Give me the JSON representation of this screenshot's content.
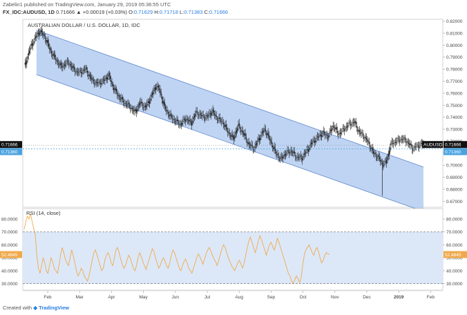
{
  "header": {
    "author": "Zabelin1",
    "published_text": "published on TradingView.com, January 29, 2019 05:36:55 UTC",
    "symbol": "FX_IDC:AUDUSD, 1D",
    "change": "0.71666 ▲ +0.00019 (+0.03%)",
    "o_label": "O:",
    "o_val": "0.71629",
    "h_label": "H:",
    "h_val": "0.71718",
    "l_label": "L:",
    "l_val": "0.71383",
    "c_label": "C:",
    "c_val": "0.71666"
  },
  "footer": {
    "created_with": "Created with",
    "brand": "TradingView"
  },
  "colors": {
    "candle": "#1a1a1a",
    "channel_fill": "#a9c6ef",
    "channel_line": "#5b86c9",
    "rsi_line": "#f0a94a",
    "rsi_band": "#dce8f8",
    "price_tag": "#111111",
    "support_tag": "#4aa3df",
    "rsi_tag": "#f0a94a"
  },
  "chart_data": [
    {
      "type": "candlestick",
      "title": "AUSTRALIAN DOLLAR / U.S. DOLLAR, 1D, IDC",
      "ylim": [
        0.665,
        0.8215
      ],
      "y_ticks": [
        "0.82000",
        "0.81000",
        "0.80000",
        "0.79000",
        "0.78000",
        "0.77000",
        "0.76000",
        "0.75000",
        "0.74000",
        "0.73000",
        "0.72000",
        "0.71000",
        "0.70000",
        "0.69000",
        "0.68000",
        "0.67000"
      ],
      "x_months": [
        "Feb",
        "Mar",
        "Apr",
        "May",
        "Jun",
        "Jul",
        "Aug",
        "Sep",
        "Oct",
        "Nov",
        "Dec",
        "2019",
        "Feb"
      ],
      "close_path": [
        [
          0,
          0.782
        ],
        [
          8,
          0.8
        ],
        [
          14,
          0.808
        ],
        [
          18,
          0.812
        ],
        [
          24,
          0.806
        ],
        [
          30,
          0.795
        ],
        [
          36,
          0.788
        ],
        [
          42,
          0.782
        ],
        [
          50,
          0.786
        ],
        [
          56,
          0.78
        ],
        [
          62,
          0.777
        ],
        [
          70,
          0.78
        ],
        [
          76,
          0.772
        ],
        [
          82,
          0.768
        ],
        [
          90,
          0.77
        ],
        [
          96,
          0.775
        ],
        [
          102,
          0.764
        ],
        [
          108,
          0.757
        ],
        [
          114,
          0.752
        ],
        [
          120,
          0.749
        ],
        [
          126,
          0.744
        ],
        [
          132,
          0.752
        ],
        [
          138,
          0.748
        ],
        [
          144,
          0.756
        ],
        [
          150,
          0.766
        ],
        [
          154,
          0.763
        ],
        [
          160,
          0.748
        ],
        [
          166,
          0.741
        ],
        [
          172,
          0.737
        ],
        [
          178,
          0.734
        ],
        [
          184,
          0.739
        ],
        [
          190,
          0.735
        ],
        [
          196,
          0.744
        ],
        [
          202,
          0.741
        ],
        [
          208,
          0.74
        ],
        [
          214,
          0.745
        ],
        [
          220,
          0.739
        ],
        [
          226,
          0.736
        ],
        [
          232,
          0.728
        ],
        [
          238,
          0.722
        ],
        [
          244,
          0.733
        ],
        [
          250,
          0.726
        ],
        [
          256,
          0.717
        ],
        [
          262,
          0.714
        ],
        [
          268,
          0.723
        ],
        [
          274,
          0.73
        ],
        [
          280,
          0.721
        ],
        [
          286,
          0.711
        ],
        [
          292,
          0.705
        ],
        [
          298,
          0.71
        ],
        [
          304,
          0.712
        ],
        [
          310,
          0.707
        ],
        [
          316,
          0.706
        ],
        [
          322,
          0.712
        ],
        [
          328,
          0.719
        ],
        [
          334,
          0.723
        ],
        [
          340,
          0.727
        ],
        [
          346,
          0.724
        ],
        [
          352,
          0.733
        ],
        [
          358,
          0.726
        ],
        [
          364,
          0.73
        ],
        [
          370,
          0.734
        ],
        [
          376,
          0.736
        ],
        [
          382,
          0.727
        ],
        [
          386,
          0.725
        ],
        [
          392,
          0.719
        ],
        [
          398,
          0.71
        ],
        [
          404,
          0.706
        ],
        [
          408,
          0.701
        ],
        [
          412,
          0.702
        ],
        [
          414,
          0.707
        ],
        [
          418,
          0.718
        ],
        [
          424,
          0.72
        ],
        [
          430,
          0.722
        ],
        [
          436,
          0.72
        ],
        [
          442,
          0.714
        ],
        [
          448,
          0.716
        ],
        [
          452,
          0.718
        ],
        [
          455,
          0.7167
        ]
      ],
      "candles": [
        [
          0,
          0.782,
          0.784,
          0.779,
          0.781
        ],
        [
          4,
          0.781,
          0.79,
          0.78,
          0.788
        ],
        [
          8,
          0.788,
          0.796,
          0.786,
          0.794
        ],
        [
          12,
          0.794,
          0.802,
          0.792,
          0.8
        ],
        [
          16,
          0.8,
          0.81,
          0.799,
          0.808
        ],
        [
          20,
          0.808,
          0.813,
          0.806,
          0.811
        ],
        [
          24,
          0.811,
          0.812,
          0.802,
          0.804
        ],
        [
          28,
          0.804,
          0.805,
          0.792,
          0.794
        ],
        [
          32,
          0.794,
          0.796,
          0.785,
          0.787
        ],
        [
          36,
          0.787,
          0.79,
          0.782,
          0.788
        ],
        [
          40,
          0.788,
          0.791,
          0.78,
          0.782
        ],
        [
          44,
          0.782,
          0.786,
          0.777,
          0.784
        ],
        [
          48,
          0.784,
          0.792,
          0.783,
          0.789
        ],
        [
          52,
          0.789,
          0.79,
          0.78,
          0.782
        ],
        [
          56,
          0.782,
          0.784,
          0.774,
          0.776
        ],
        [
          60,
          0.776,
          0.78,
          0.772,
          0.778
        ],
        [
          64,
          0.778,
          0.783,
          0.776,
          0.78
        ],
        [
          68,
          0.78,
          0.781,
          0.771,
          0.773
        ],
        [
          72,
          0.773,
          0.776,
          0.766,
          0.768
        ],
        [
          76,
          0.768,
          0.772,
          0.765,
          0.77
        ],
        [
          80,
          0.77,
          0.771,
          0.764,
          0.766
        ],
        [
          84,
          0.766,
          0.77,
          0.762,
          0.768
        ],
        [
          88,
          0.768,
          0.776,
          0.767,
          0.774
        ],
        [
          92,
          0.774,
          0.778,
          0.77,
          0.772
        ],
        [
          96,
          0.772,
          0.773,
          0.76,
          0.762
        ],
        [
          100,
          0.762,
          0.765,
          0.752,
          0.754
        ],
        [
          104,
          0.754,
          0.757,
          0.748,
          0.75
        ],
        [
          108,
          0.75,
          0.753,
          0.745,
          0.747
        ],
        [
          112,
          0.747,
          0.748,
          0.741,
          0.745
        ],
        [
          116,
          0.745,
          0.752,
          0.743,
          0.75
        ],
        [
          120,
          0.75,
          0.753,
          0.746,
          0.748
        ],
        [
          124,
          0.748,
          0.755,
          0.747,
          0.753
        ],
        [
          128,
          0.753,
          0.76,
          0.752,
          0.758
        ],
        [
          132,
          0.758,
          0.767,
          0.757,
          0.765
        ],
        [
          136,
          0.765,
          0.769,
          0.762,
          0.764
        ],
        [
          140,
          0.764,
          0.765,
          0.754,
          0.756
        ],
        [
          144,
          0.756,
          0.758,
          0.746,
          0.748
        ],
        [
          148,
          0.748,
          0.749,
          0.738,
          0.74
        ],
        [
          152,
          0.74,
          0.742,
          0.734,
          0.736
        ],
        [
          156,
          0.736,
          0.738,
          0.731,
          0.733
        ],
        [
          160,
          0.733,
          0.74,
          0.732,
          0.738
        ],
        [
          164,
          0.738,
          0.741,
          0.733,
          0.735
        ],
        [
          168,
          0.735,
          0.742,
          0.734,
          0.74
        ],
        [
          172,
          0.74,
          0.745,
          0.738,
          0.743
        ],
        [
          176,
          0.743,
          0.744,
          0.737,
          0.739
        ],
        [
          180,
          0.739,
          0.746,
          0.738,
          0.744
        ],
        [
          184,
          0.744,
          0.745,
          0.736,
          0.738
        ],
        [
          188,
          0.738,
          0.74,
          0.73,
          0.732
        ],
        [
          192,
          0.732,
          0.734,
          0.724,
          0.726
        ],
        [
          196,
          0.726,
          0.735,
          0.725,
          0.733
        ],
        [
          200,
          0.733,
          0.737,
          0.729,
          0.731
        ],
        [
          204,
          0.731,
          0.732,
          0.722,
          0.724
        ],
        [
          208,
          0.724,
          0.726,
          0.715,
          0.717
        ],
        [
          212,
          0.717,
          0.72,
          0.711,
          0.714
        ],
        [
          216,
          0.714,
          0.722,
          0.713,
          0.72
        ],
        [
          220,
          0.72,
          0.728,
          0.719,
          0.726
        ],
        [
          224,
          0.726,
          0.731,
          0.723,
          0.729
        ],
        [
          228,
          0.729,
          0.73,
          0.719,
          0.721
        ],
        [
          232,
          0.721,
          0.722,
          0.71,
          0.712
        ],
        [
          236,
          0.712,
          0.713,
          0.703,
          0.705
        ],
        [
          240,
          0.705,
          0.711,
          0.703,
          0.709
        ],
        [
          244,
          0.709,
          0.713,
          0.706,
          0.711
        ],
        [
          248,
          0.711,
          0.712,
          0.704,
          0.706
        ],
        [
          252,
          0.706,
          0.709,
          0.701,
          0.707
        ],
        [
          256,
          0.707,
          0.714,
          0.706,
          0.712
        ],
        [
          260,
          0.712,
          0.72,
          0.711,
          0.718
        ],
        [
          264,
          0.718,
          0.725,
          0.717,
          0.723
        ],
        [
          268,
          0.723,
          0.729,
          0.721,
          0.727
        ],
        [
          272,
          0.727,
          0.728,
          0.721,
          0.723
        ],
        [
          276,
          0.723,
          0.734,
          0.722,
          0.732
        ],
        [
          280,
          0.732,
          0.735,
          0.724,
          0.726
        ],
        [
          284,
          0.726,
          0.732,
          0.724,
          0.73
        ],
        [
          288,
          0.73,
          0.736,
          0.728,
          0.734
        ],
        [
          292,
          0.734,
          0.739,
          0.732,
          0.736
        ],
        [
          296,
          0.736,
          0.737,
          0.726,
          0.728
        ],
        [
          300,
          0.728,
          0.729,
          0.722,
          0.725
        ],
        [
          304,
          0.725,
          0.726,
          0.717,
          0.719
        ],
        [
          308,
          0.719,
          0.72,
          0.708,
          0.71
        ],
        [
          312,
          0.71,
          0.712,
          0.7,
          0.702
        ],
        [
          316,
          0.702,
          0.704,
          0.674,
          0.699
        ],
        [
          320,
          0.699,
          0.71,
          0.697,
          0.708
        ],
        [
          324,
          0.708,
          0.717,
          0.707,
          0.715
        ],
        [
          328,
          0.715,
          0.721,
          0.713,
          0.719
        ],
        [
          332,
          0.719,
          0.723,
          0.716,
          0.721
        ],
        [
          336,
          0.721,
          0.722,
          0.716,
          0.718
        ],
        [
          340,
          0.718,
          0.72,
          0.712,
          0.714
        ],
        [
          344,
          0.714,
          0.718,
          0.712,
          0.716
        ],
        [
          348,
          0.716,
          0.719,
          0.713,
          0.7167
        ]
      ],
      "channel": {
        "upper": [
          [
            14,
            0.8125
          ],
          [
            455,
            0.6985
          ]
        ],
        "lower": [
          [
            14,
            0.7755
          ],
          [
            455,
            0.6615
          ]
        ]
      },
      "levels": [
        {
          "name": "last",
          "value": 0.71666,
          "label": "0.71666",
          "symbol": "AUDUSD"
        },
        {
          "name": "support",
          "value": 0.7136,
          "label": "0.71360"
        }
      ]
    },
    {
      "type": "line",
      "title": "RSI (14, close)",
      "ylim": [
        25,
        88
      ],
      "y_ticks": [
        "80.0000",
        "70.0000",
        "60.0000",
        "50.0000",
        "40.0000",
        "30.0000"
      ],
      "overbought": 70,
      "oversold": 30,
      "last_label": "52.4845",
      "values": [
        72,
        78,
        82,
        80,
        84,
        78,
        73,
        68,
        52,
        42,
        38,
        44,
        50,
        46,
        40,
        38,
        44,
        50,
        47,
        42,
        40,
        38,
        44,
        52,
        58,
        54,
        49,
        46,
        44,
        50,
        56,
        52,
        46,
        40,
        36,
        38,
        42,
        40,
        36,
        34,
        32,
        36,
        42,
        48,
        54,
        56,
        52,
        48,
        44,
        40,
        42,
        48,
        52,
        54,
        51,
        46,
        44,
        50,
        56,
        58,
        54,
        49,
        45,
        42,
        44,
        48,
        52,
        50,
        46,
        42,
        40,
        44,
        50,
        54,
        51,
        47,
        44,
        41,
        45,
        49,
        53,
        57,
        55,
        50,
        46,
        42,
        44,
        48,
        50,
        47,
        44,
        42,
        46,
        52,
        56,
        54,
        50,
        46,
        42,
        40,
        44,
        47,
        49,
        46,
        42,
        40,
        38,
        42,
        46,
        50,
        53,
        51,
        48,
        45,
        49,
        53,
        56,
        58,
        55,
        52,
        49,
        47,
        44,
        48,
        53,
        57,
        60,
        58,
        54,
        50,
        47,
        44,
        42,
        40,
        43,
        46,
        48,
        45,
        42,
        46,
        52,
        58,
        63,
        66,
        62,
        58,
        54,
        58,
        63,
        67,
        64,
        60,
        56,
        52,
        56,
        60,
        62,
        59,
        56,
        60,
        65,
        62,
        58,
        54,
        50,
        46,
        42,
        38,
        36,
        32,
        30,
        33,
        36,
        34,
        31,
        34,
        44,
        52,
        56,
        58,
        60,
        57,
        54,
        52,
        56,
        58,
        55,
        50,
        46,
        48,
        52,
        54,
        53,
        52.4845
      ]
    }
  ]
}
